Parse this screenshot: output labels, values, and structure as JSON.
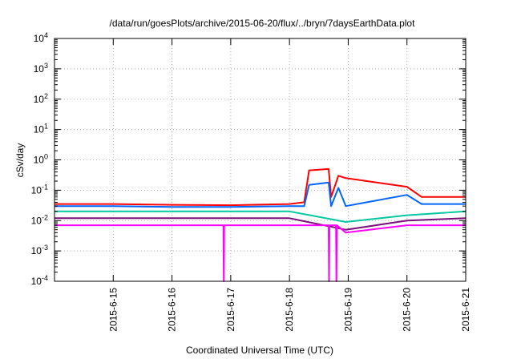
{
  "chart_data": {
    "type": "line",
    "title": "/data/run/goesPlots/archive/2015-06-20/flux/../bryn/7daysEarthData.plot",
    "xlabel": "Coordinated Universal Time (UTC)",
    "ylabel": "cSv/day",
    "x_range": [
      "2015-06-14T00:00",
      "2015-06-21T00:00"
    ],
    "y_scale": "log",
    "ylim": [
      0.0001,
      10000
    ],
    "grid": true,
    "legend": "none",
    "x_ticks": [
      {
        "date": "2015-06-15T00:00",
        "label": "2015-6-15"
      },
      {
        "date": "2015-06-16T00:00",
        "label": "2015-6-16"
      },
      {
        "date": "2015-06-17T00:00",
        "label": "2015-6-17"
      },
      {
        "date": "2015-06-18T00:00",
        "label": "2015-6-18"
      },
      {
        "date": "2015-06-19T00:00",
        "label": "2015-6-19"
      },
      {
        "date": "2015-06-20T00:00",
        "label": "2015-6-20"
      },
      {
        "date": "2015-06-21T00:00",
        "label": "2015-6-21"
      }
    ],
    "y_ticks": [
      {
        "value": 0.0001,
        "base": "10",
        "exp": "-4"
      },
      {
        "value": 0.001,
        "base": "10",
        "exp": "-3"
      },
      {
        "value": 0.01,
        "base": "10",
        "exp": "-2"
      },
      {
        "value": 0.1,
        "base": "10",
        "exp": "-1"
      },
      {
        "value": 1,
        "base": "10",
        "exp": "0"
      },
      {
        "value": 10,
        "base": "10",
        "exp": "1"
      },
      {
        "value": 100,
        "base": "10",
        "exp": "2"
      },
      {
        "value": 1000,
        "base": "10",
        "exp": "3"
      },
      {
        "value": 10000,
        "base": "10",
        "exp": "4"
      }
    ],
    "series": [
      {
        "color": "#ff0000",
        "points": [
          [
            "2015-06-14T00:00",
            0.035
          ],
          [
            "2015-06-15T00:00",
            0.035
          ],
          [
            "2015-06-16T00:00",
            0.033
          ],
          [
            "2015-06-17T00:00",
            0.032
          ],
          [
            "2015-06-18T00:00",
            0.035
          ],
          [
            "2015-06-18T06:00",
            0.04
          ],
          [
            "2015-06-18T08:00",
            0.45
          ],
          [
            "2015-06-18T16:00",
            0.5
          ],
          [
            "2015-06-18T17:00",
            0.06
          ],
          [
            "2015-06-18T20:00",
            0.3
          ],
          [
            "2015-06-18T23:00",
            0.25
          ],
          [
            "2015-06-20T00:00",
            0.13
          ],
          [
            "2015-06-20T06:00",
            0.06
          ],
          [
            "2015-06-21T00:00",
            0.06
          ]
        ]
      },
      {
        "color": "#0066ff",
        "points": [
          [
            "2015-06-14T00:00",
            0.03
          ],
          [
            "2015-06-15T00:00",
            0.03
          ],
          [
            "2015-06-16T00:00",
            0.028
          ],
          [
            "2015-06-17T00:00",
            0.028
          ],
          [
            "2015-06-18T00:00",
            0.03
          ],
          [
            "2015-06-18T06:00",
            0.03
          ],
          [
            "2015-06-18T08:00",
            0.15
          ],
          [
            "2015-06-18T16:00",
            0.18
          ],
          [
            "2015-06-18T17:00",
            0.03
          ],
          [
            "2015-06-18T20:00",
            0.12
          ],
          [
            "2015-06-18T23:00",
            0.03
          ],
          [
            "2015-06-20T00:00",
            0.07
          ],
          [
            "2015-06-20T06:00",
            0.035
          ],
          [
            "2015-06-21T00:00",
            0.035
          ]
        ]
      },
      {
        "color": "#00c8a0",
        "points": [
          [
            "2015-06-14T00:00",
            0.02
          ],
          [
            "2015-06-15T00:00",
            0.02
          ],
          [
            "2015-06-16T00:00",
            0.02
          ],
          [
            "2015-06-17T00:00",
            0.02
          ],
          [
            "2015-06-18T00:00",
            0.02
          ],
          [
            "2015-06-18T23:00",
            0.009
          ],
          [
            "2015-06-20T00:00",
            0.015
          ],
          [
            "2015-06-21T00:00",
            0.02
          ]
        ]
      },
      {
        "color": "#7a0d7a",
        "points": [
          [
            "2015-06-14T00:00",
            0.012
          ],
          [
            "2015-06-15T00:00",
            0.012
          ],
          [
            "2015-06-16T00:00",
            0.012
          ],
          [
            "2015-06-17T00:00",
            0.012
          ],
          [
            "2015-06-18T00:00",
            0.012
          ],
          [
            "2015-06-18T23:00",
            0.005
          ],
          [
            "2015-06-20T00:00",
            0.01
          ],
          [
            "2015-06-21T00:00",
            0.012
          ]
        ]
      },
      {
        "color": "#ff00ff",
        "points": [
          [
            "2015-06-14T00:00",
            0.007
          ],
          [
            "2015-06-15T00:00",
            0.007
          ],
          [
            "2015-06-16T00:00",
            0.007
          ],
          [
            "2015-06-16T21:00",
            0.007
          ],
          [
            "2015-06-16T21:10",
            0.0001
          ],
          [
            "2015-06-16T21:20",
            0.007
          ],
          [
            "2015-06-18T00:00",
            0.007
          ],
          [
            "2015-06-18T16:00",
            0.007
          ],
          [
            "2015-06-18T16:10",
            0.0001
          ],
          [
            "2015-06-18T16:20",
            0.007
          ],
          [
            "2015-06-18T19:00",
            0.007
          ],
          [
            "2015-06-18T19:10",
            0.0001
          ],
          [
            "2015-06-18T19:20",
            0.007
          ],
          [
            "2015-06-18T23:00",
            0.004
          ],
          [
            "2015-06-20T00:00",
            0.007
          ],
          [
            "2015-06-21T00:00",
            0.007
          ]
        ]
      }
    ]
  }
}
